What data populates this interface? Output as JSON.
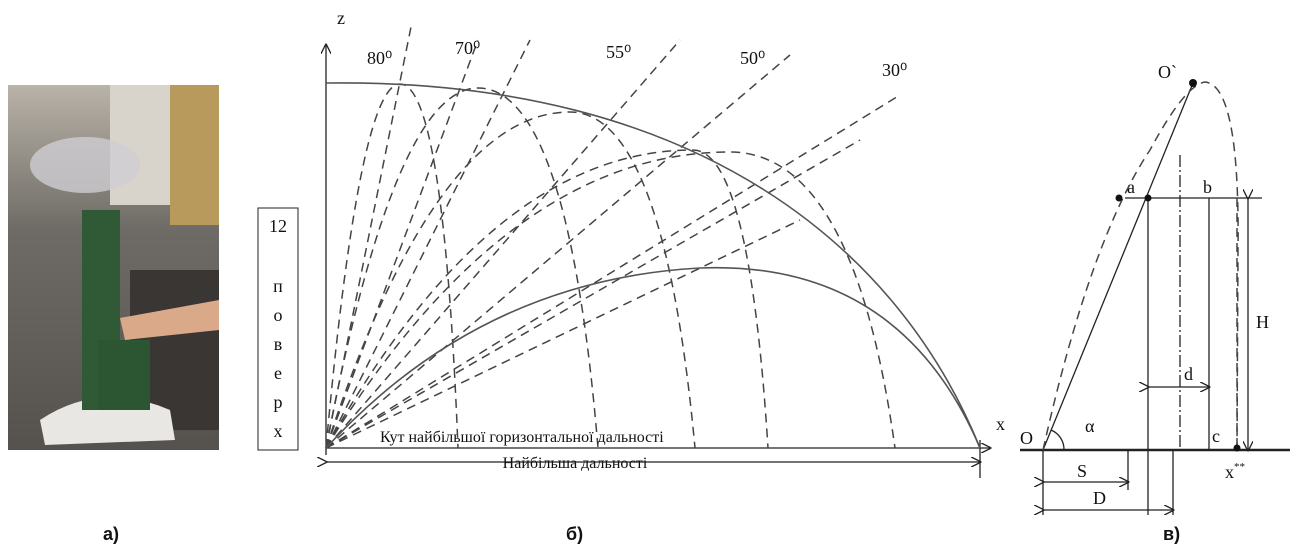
{
  "panel_a": {
    "caption": "а)"
  },
  "panel_b": {
    "axis_z": "z",
    "axis_x": "x",
    "angles": [
      "80⁰",
      "70⁰",
      "55⁰",
      "50⁰",
      "30⁰"
    ],
    "floor_box": {
      "number": "12",
      "letters": [
        "п",
        "о",
        "в",
        "е",
        "р",
        "х"
      ]
    },
    "angle_note": "Кут найбільшої горизонтальної дальності",
    "range_note": "Найбільша дальності",
    "caption": "б)"
  },
  "panel_c": {
    "labels": {
      "apex": "O`",
      "a": "a",
      "b": "b",
      "h": "H",
      "d": "d",
      "origin": "O",
      "alpha": "α",
      "c": "c",
      "x": "x",
      "x_mark": "**",
      "s": "S",
      "big_d": "D"
    },
    "caption": "в)"
  }
}
